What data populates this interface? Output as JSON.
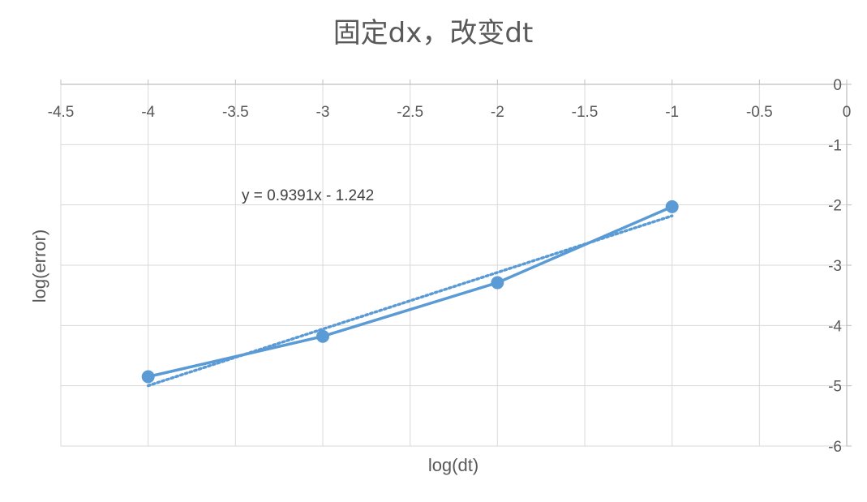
{
  "chart_data": {
    "type": "scatter",
    "title": "固定dx，改变dt",
    "xlabel": "log(dt)",
    "ylabel": "log(error)",
    "xlim": [
      -4.5,
      0
    ],
    "ylim": [
      -6,
      0
    ],
    "x_ticks": [
      "-4.5",
      "-4",
      "-3.5",
      "-3",
      "-2.5",
      "-2",
      "-1.5",
      "-1",
      "-0.5",
      "0"
    ],
    "y_ticks": [
      "0",
      "-1",
      "-2",
      "-3",
      "-4",
      "-5",
      "-6"
    ],
    "grid": true,
    "legend": "none",
    "series": [
      {
        "x": [
          -4,
          -3,
          -2,
          -1
        ],
        "y": [
          -4.85,
          -4.18,
          -3.29,
          -2.03
        ],
        "color": "#5B9BD5",
        "style": "line-with-markers"
      }
    ],
    "trendline": {
      "type": "linear",
      "slope": 0.9391,
      "intercept": -1.242,
      "x_range": [
        -4,
        -1
      ],
      "color": "#5B9BD5",
      "style": "dotted",
      "equation_label": "y = 0.9391x - 1.242"
    }
  }
}
